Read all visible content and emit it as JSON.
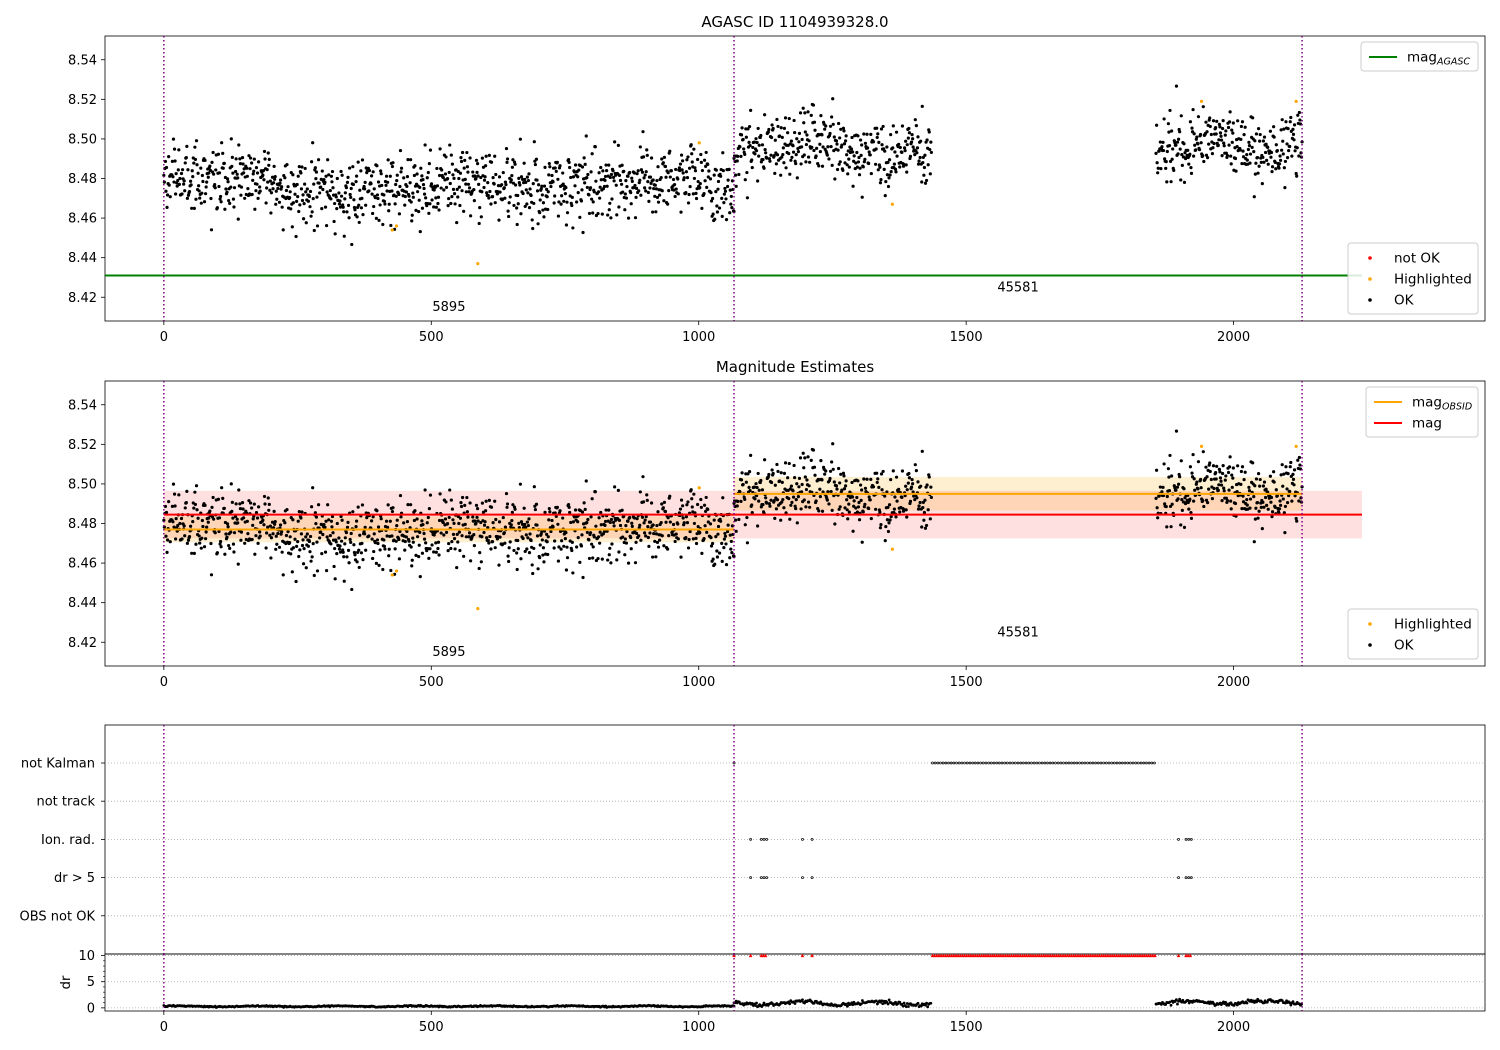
{
  "figure": {
    "background": "#ffffff"
  },
  "chart_data": [
    {
      "type": "scatter",
      "title": "AGASC ID 1104939328.0",
      "xlabel": "",
      "ylabel": "",
      "xlim": [
        -110,
        2470
      ],
      "ylim": [
        8.408,
        8.552
      ],
      "xticks": [
        0,
        500,
        1000,
        1500,
        2000
      ],
      "yticks": [
        8.42,
        8.44,
        8.46,
        8.48,
        8.5,
        8.52,
        8.54
      ],
      "grid": false,
      "vlines": {
        "x": [
          0,
          1066,
          2128
        ],
        "color": "#800080",
        "style": "dotted"
      },
      "annotations": [
        {
          "text": "5895",
          "x": 533,
          "y": 8.413
        },
        {
          "text": "45581",
          "x": 1597,
          "y": 8.423
        }
      ],
      "hlines": [
        {
          "name": "mag_AGASC",
          "y": 8.431,
          "x": [
            -110,
            2470
          ],
          "color": "#008000",
          "clip_x": 2240
        }
      ],
      "legends": [
        {
          "placement": "upper right",
          "entries": [
            {
              "label": "mag",
              "sub": "AGASC",
              "color": "#008000",
              "marker": "line"
            }
          ]
        },
        {
          "placement": "lower right",
          "entries": [
            {
              "label": "not OK",
              "color": "#ff0000",
              "marker": "dot"
            },
            {
              "label": "Highlighted",
              "color": "#ffa500",
              "marker": "dot"
            },
            {
              "label": "OK",
              "color": "#000000",
              "marker": "dot"
            }
          ]
        }
      ],
      "series": [
        {
          "name": "OK",
          "color": "#000000",
          "generated": "scatter",
          "segments": [
            {
              "x0": 0,
              "x1": 1066,
              "n": 1066,
              "mean": 8.478,
              "std": 0.0085,
              "trend": [
                8.481,
                8.479,
                8.472,
                8.478,
                8.476,
                8.479,
                8.476
              ]
            },
            {
              "x0": 1066,
              "x1": 1435,
              "n": 369,
              "mean": 8.495,
              "std": 0.0085,
              "trend": [
                8.49,
                8.497,
                8.498,
                8.494,
                8.493,
                8.492
              ]
            },
            {
              "x0": 1855,
              "x1": 2128,
              "n": 273,
              "mean": 8.497,
              "std": 0.008,
              "trend": [
                8.49,
                8.497,
                8.502,
                8.497,
                8.493,
                8.503
              ]
            }
          ]
        },
        {
          "name": "Highlighted",
          "color": "#ffa500",
          "points": [
            [
              427,
              8.454
            ],
            [
              435,
              8.456
            ],
            [
              587,
              8.437
            ],
            [
              1001,
              8.498
            ],
            [
              1362,
              8.467
            ],
            [
              1940,
              8.519
            ],
            [
              2117,
              8.519
            ]
          ]
        }
      ]
    },
    {
      "type": "scatter",
      "title": "Magnitude Estimates",
      "xlabel": "",
      "ylabel": "",
      "xlim": [
        -110,
        2470
      ],
      "ylim": [
        8.408,
        8.552
      ],
      "xticks": [
        0,
        500,
        1000,
        1500,
        2000
      ],
      "yticks": [
        8.42,
        8.44,
        8.46,
        8.48,
        8.5,
        8.52,
        8.54
      ],
      "grid": false,
      "vlines": {
        "x": [
          0,
          1066,
          2128
        ],
        "color": "#800080",
        "style": "dotted"
      },
      "annotations": [
        {
          "text": "5895",
          "x": 533,
          "y": 8.413
        },
        {
          "text": "45581",
          "x": 1597,
          "y": 8.423
        }
      ],
      "bands": [
        {
          "y0": 8.4725,
          "y1": 8.4965,
          "x0": 0,
          "x1": 2240,
          "color": "#ff0000",
          "opacity": 0.12
        },
        {
          "y0": 8.4705,
          "y1": 8.4835,
          "x0": 0,
          "x1": 1066,
          "color": "#ffa500",
          "opacity": 0.18
        },
        {
          "y0": 8.4865,
          "y1": 8.5035,
          "x0": 1066,
          "x1": 2128,
          "color": "#ffa500",
          "opacity": 0.18
        }
      ],
      "hlines": [
        {
          "name": "mag",
          "y": 8.4845,
          "x": [
            0,
            2240
          ],
          "color": "#ff0000"
        },
        {
          "name": "mag_OBSID",
          "y": 8.477,
          "x": [
            0,
            1066
          ],
          "color": "#ffa500"
        },
        {
          "name": "mag_OBSID",
          "y": 8.495,
          "x": [
            1066,
            2128
          ],
          "color": "#ffa500"
        }
      ],
      "legends": [
        {
          "placement": "upper right",
          "entries": [
            {
              "label": "mag",
              "sub": "OBSID",
              "color": "#ffa500",
              "marker": "line"
            },
            {
              "label": "mag",
              "sub": "",
              "color": "#ff0000",
              "marker": "line"
            }
          ]
        },
        {
          "placement": "lower right",
          "entries": [
            {
              "label": "Highlighted",
              "color": "#ffa500",
              "marker": "dot"
            },
            {
              "label": "OK",
              "color": "#000000",
              "marker": "dot"
            }
          ]
        }
      ],
      "series": [
        {
          "name": "OK",
          "color": "#000000",
          "generated": "same as panel 1"
        },
        {
          "name": "Highlighted",
          "color": "#ffa500",
          "points": [
            [
              427,
              8.454
            ],
            [
              435,
              8.456
            ],
            [
              587,
              8.437
            ],
            [
              1001,
              8.498
            ],
            [
              1362,
              8.467
            ],
            [
              1940,
              8.519
            ],
            [
              2117,
              8.519
            ]
          ]
        }
      ]
    },
    {
      "type": "scatter",
      "title": "",
      "xlim": [
        -110,
        2470
      ],
      "xticks": [
        0,
        500,
        1000,
        1500,
        2000
      ],
      "categories": [
        "not Kalman",
        "not track",
        "Ion. rad.",
        "dr > 5",
        "OBS not OK"
      ],
      "flags": {
        "not Kalman": [
          [
            1066,
            1066
          ],
          [
            1437,
            1855
          ]
        ],
        "not track": [],
        "Ion. rad.": [
          [
            1097,
            1097
          ],
          [
            1117,
            1127
          ],
          [
            1194,
            1194
          ],
          [
            1212,
            1212
          ],
          [
            1897,
            1897
          ],
          [
            1911,
            1921
          ]
        ],
        "dr > 5": [
          [
            1097,
            1097
          ],
          [
            1117,
            1127
          ],
          [
            1194,
            1194
          ],
          [
            1212,
            1212
          ],
          [
            1897,
            1897
          ],
          [
            1911,
            1921
          ]
        ],
        "OBS not OK": []
      },
      "vlines": {
        "x": [
          0,
          1066,
          2128
        ],
        "color": "#800080",
        "style": "dotted"
      }
    },
    {
      "type": "scatter",
      "ylabel": "dr",
      "xlim": [
        -110,
        2470
      ],
      "ylim": [
        -0.6,
        10.3
      ],
      "xticks": [
        0,
        500,
        1000,
        1500,
        2000
      ],
      "yticks": [
        0,
        5,
        10
      ],
      "dr_segments": [
        {
          "x0": 0,
          "x1": 1066,
          "mean": 0.3,
          "amp": 0.15
        },
        {
          "x0": 1066,
          "x1": 1435,
          "mean": 0.9,
          "amp": 0.5
        },
        {
          "x0": 1855,
          "x1": 2128,
          "mean": 1.0,
          "amp": 0.5
        }
      ],
      "capped": {
        "value": 10,
        "color": "#ff0000",
        "x": [
          [
            1066,
            1066
          ],
          [
            1097,
            1097
          ],
          [
            1117,
            1127
          ],
          [
            1194,
            1194
          ],
          [
            1212,
            1212
          ],
          [
            1437,
            1855
          ],
          [
            1897,
            1897
          ],
          [
            1911,
            1921
          ]
        ]
      },
      "vlines": {
        "x": [
          0,
          1066,
          2128
        ],
        "color": "#800080",
        "style": "dotted"
      }
    }
  ]
}
